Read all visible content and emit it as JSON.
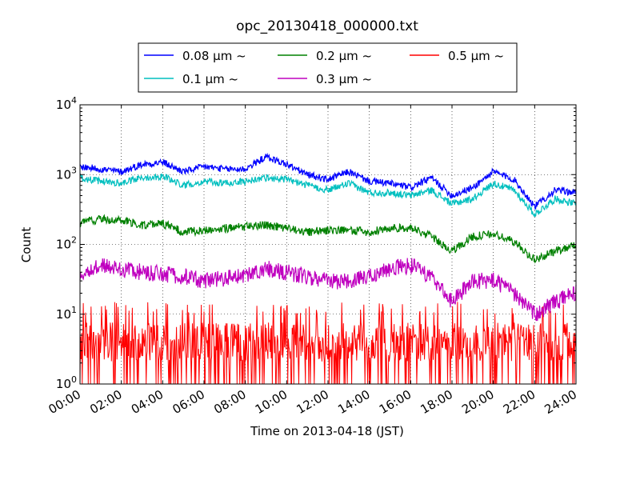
{
  "chart_data": {
    "type": "line",
    "title": "opc_20130418_000000.txt",
    "xlabel": "Time on 2013-04-18 (JST)",
    "ylabel": "Count",
    "yscale": "log",
    "ylim": [
      1,
      10000
    ],
    "y_ticks": [
      {
        "base": "10",
        "exp": "0",
        "value": 1
      },
      {
        "base": "10",
        "exp": "1",
        "value": 10
      },
      {
        "base": "10",
        "exp": "2",
        "value": 100
      },
      {
        "base": "10",
        "exp": "3",
        "value": 1000
      },
      {
        "base": "10",
        "exp": "4",
        "value": 10000
      }
    ],
    "x_ticks": [
      "00:00",
      "02:00",
      "04:00",
      "06:00",
      "08:00",
      "10:00",
      "12:00",
      "14:00",
      "16:00",
      "18:00",
      "20:00",
      "22:00",
      "24:00"
    ],
    "xlim": [
      "00:00",
      "24:00"
    ],
    "grid": true,
    "legend_position": "top-center",
    "series": [
      {
        "name": "0.08 μm ~",
        "color": "#0000ff",
        "x": [
          "00:00",
          "01:00",
          "02:00",
          "03:00",
          "04:00",
          "05:00",
          "06:00",
          "07:00",
          "08:00",
          "09:00",
          "10:00",
          "11:00",
          "12:00",
          "13:00",
          "14:00",
          "15:00",
          "16:00",
          "17:00",
          "18:00",
          "19:00",
          "20:00",
          "21:00",
          "22:00",
          "23:00",
          "24:00"
        ],
        "values": [
          1300,
          1200,
          1100,
          1400,
          1500,
          1100,
          1300,
          1200,
          1200,
          1800,
          1400,
          1000,
          850,
          1100,
          800,
          750,
          650,
          900,
          500,
          650,
          1100,
          850,
          350,
          600,
          550
        ]
      },
      {
        "name": "0.1 μm ~",
        "color": "#00bfbf",
        "x": [
          "00:00",
          "01:00",
          "02:00",
          "03:00",
          "04:00",
          "05:00",
          "06:00",
          "07:00",
          "08:00",
          "09:00",
          "10:00",
          "11:00",
          "12:00",
          "13:00",
          "14:00",
          "15:00",
          "16:00",
          "17:00",
          "18:00",
          "19:00",
          "20:00",
          "21:00",
          "22:00",
          "23:00",
          "24:00"
        ],
        "values": [
          900,
          800,
          750,
          900,
          950,
          700,
          800,
          750,
          800,
          900,
          850,
          700,
          600,
          750,
          550,
          550,
          500,
          600,
          380,
          450,
          750,
          600,
          270,
          450,
          380
        ]
      },
      {
        "name": "0.2 μm ~",
        "color": "#008000",
        "x": [
          "00:00",
          "01:00",
          "02:00",
          "03:00",
          "04:00",
          "05:00",
          "06:00",
          "07:00",
          "08:00",
          "09:00",
          "10:00",
          "11:00",
          "12:00",
          "13:00",
          "14:00",
          "15:00",
          "16:00",
          "17:00",
          "18:00",
          "19:00",
          "20:00",
          "21:00",
          "22:00",
          "23:00",
          "24:00"
        ],
        "values": [
          200,
          230,
          220,
          190,
          200,
          150,
          160,
          170,
          180,
          190,
          170,
          150,
          160,
          160,
          150,
          170,
          170,
          130,
          80,
          130,
          140,
          110,
          60,
          80,
          100
        ]
      },
      {
        "name": "0.3 μm ~",
        "color": "#bf00bf",
        "x": [
          "00:00",
          "01:00",
          "02:00",
          "03:00",
          "04:00",
          "05:00",
          "06:00",
          "07:00",
          "08:00",
          "09:00",
          "10:00",
          "11:00",
          "12:00",
          "13:00",
          "14:00",
          "15:00",
          "16:00",
          "17:00",
          "18:00",
          "19:00",
          "20:00",
          "21:00",
          "22:00",
          "23:00",
          "24:00"
        ],
        "values": [
          40,
          50,
          45,
          40,
          38,
          35,
          30,
          33,
          35,
          45,
          40,
          35,
          30,
          30,
          35,
          45,
          50,
          35,
          15,
          30,
          30,
          20,
          10,
          15,
          20
        ]
      },
      {
        "name": "0.5 μm ~",
        "color": "#ff0000",
        "x": [
          "00:00",
          "01:00",
          "02:00",
          "03:00",
          "04:00",
          "05:00",
          "06:00",
          "07:00",
          "08:00",
          "09:00",
          "10:00",
          "11:00",
          "12:00",
          "13:00",
          "14:00",
          "15:00",
          "16:00",
          "17:00",
          "18:00",
          "19:00",
          "20:00",
          "21:00",
          "22:00",
          "23:00",
          "24:00"
        ],
        "values": [
          4,
          4,
          4,
          4,
          4,
          4,
          4,
          4,
          4,
          4,
          4,
          4,
          4,
          4,
          4,
          4,
          4,
          4,
          4,
          4,
          4,
          4,
          4,
          4,
          4
        ]
      }
    ]
  }
}
